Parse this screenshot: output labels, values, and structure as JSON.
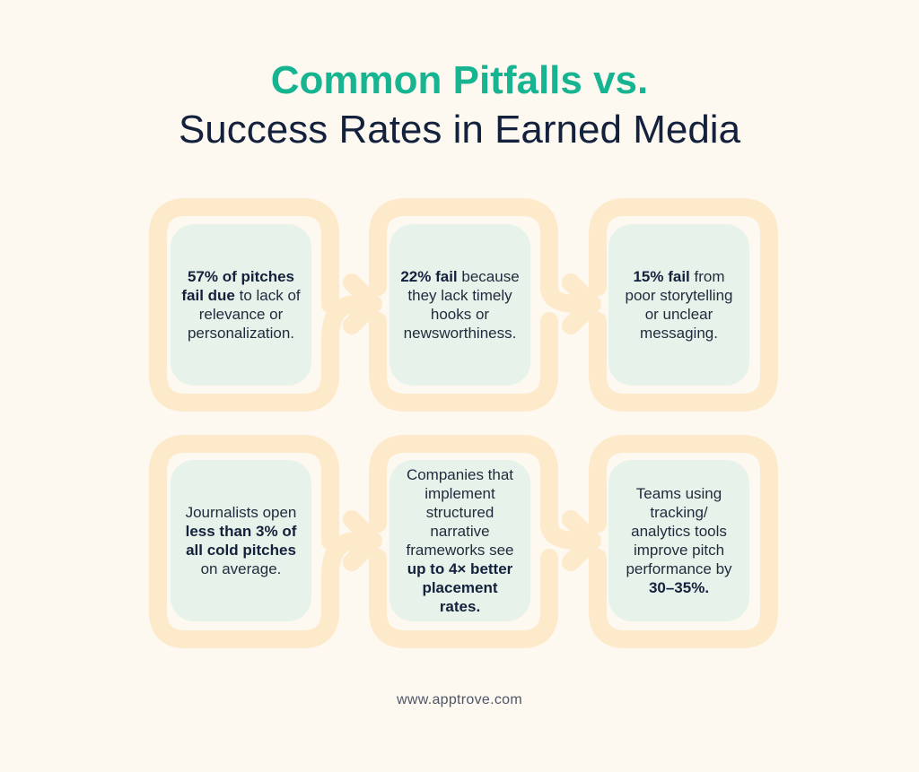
{
  "title": {
    "line1": "Common Pitfalls vs.",
    "line2": "Success Rates in Earned Media"
  },
  "cards": [
    {
      "lead": "",
      "bold": "57% of pitches fail due",
      "text": " to lack of relevance or personalization.",
      "bold2": "",
      "tail": ""
    },
    {
      "lead": "",
      "bold": "22% fail",
      "text": " because they lack timely hooks or newsworthiness.",
      "bold2": "",
      "tail": ""
    },
    {
      "lead": "",
      "bold": "15% fail",
      "text": " from poor storytelling or unclear messaging.",
      "bold2": "",
      "tail": ""
    },
    {
      "lead": "Journalists open ",
      "bold": "less than 3% of all cold pitches",
      "text": " on average.",
      "bold2": "",
      "tail": ""
    },
    {
      "lead": "Companies that implement structured narrative frameworks see ",
      "bold": "up to 4× better placement rates.",
      "text": "",
      "bold2": "",
      "tail": ""
    },
    {
      "lead": "Teams using tracking/ analytics tools improve pitch performance by ",
      "bold": "30–35%.",
      "text": "",
      "bold2": "",
      "tail": ""
    }
  ],
  "colors": {
    "accent": "#17b491",
    "heading": "#14213d",
    "card_fill": "#e7f3ea",
    "connector": "#fdeacb",
    "background": "#fdf9f1"
  },
  "icons": [
    "arrow-right-icon",
    "arrow-right-icon",
    "arrow-right-icon",
    "arrow-right-icon"
  ],
  "footer": "www.apptrove.com"
}
